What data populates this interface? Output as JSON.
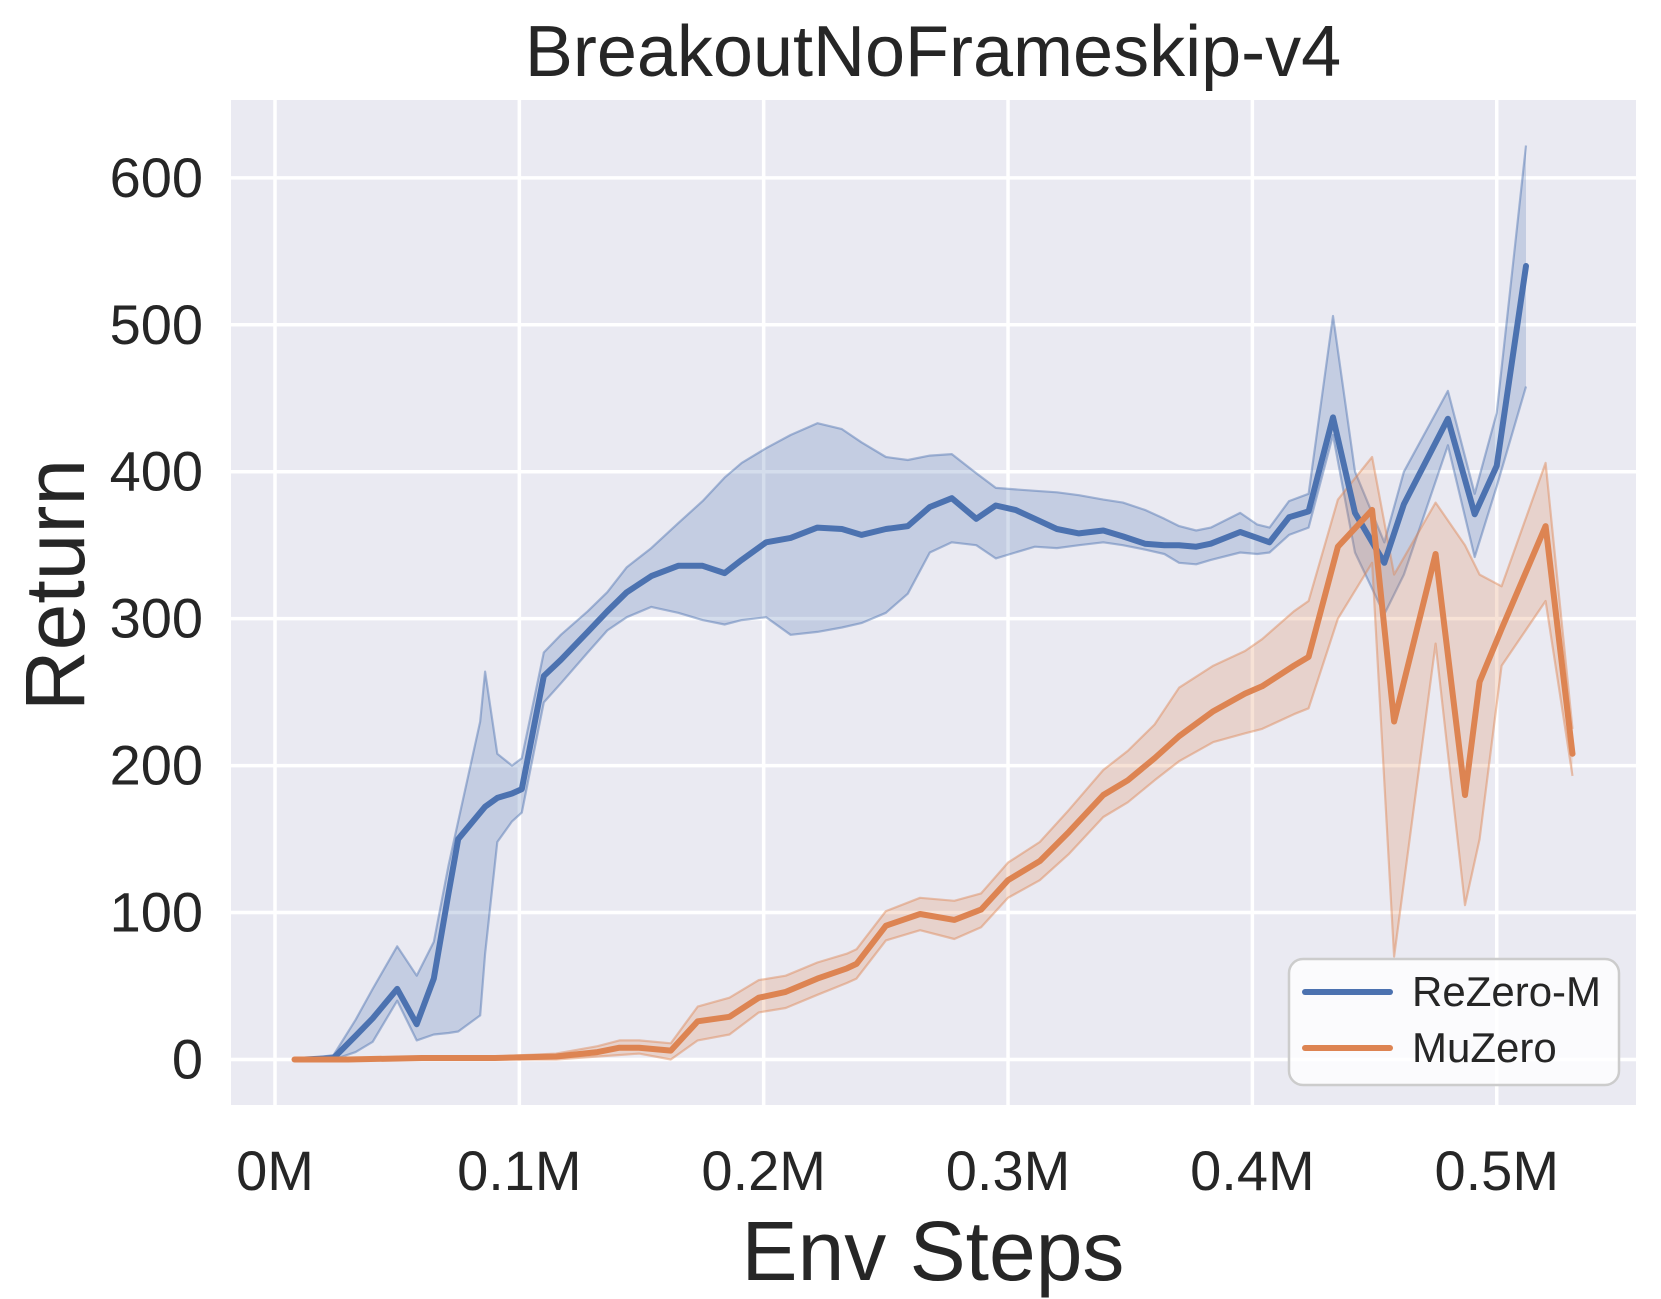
{
  "chart_data": {
    "type": "line",
    "title": "BreakoutNoFrameskip-v4",
    "xlabel": "Env Steps",
    "ylabel": "Return",
    "x_unit": "millions of env steps",
    "xlim": [
      -0.018,
      0.557
    ],
    "ylim": [
      -31,
      653
    ],
    "grid": true,
    "plot_background": "#EAEAF2",
    "figure_background": "#FFFFFF",
    "grid_color": "#FFFFFF",
    "text_color": "#262626",
    "x_ticks": [
      {
        "value": 0.0,
        "label": "0M"
      },
      {
        "value": 0.1,
        "label": "0.1M"
      },
      {
        "value": 0.2,
        "label": "0.2M"
      },
      {
        "value": 0.3,
        "label": "0.3M"
      },
      {
        "value": 0.4,
        "label": "0.4M"
      },
      {
        "value": 0.5,
        "label": "0.5M"
      }
    ],
    "y_ticks": [
      0,
      100,
      200,
      300,
      400,
      500,
      600
    ],
    "legend": {
      "position": "lower-right",
      "entries": [
        {
          "label": "ReZero-M",
          "color": "#4C72B0"
        },
        {
          "label": "MuZero",
          "color": "#DD8452"
        }
      ]
    },
    "point_format": "[env_steps_M, ci_low, mean, ci_high]",
    "series": [
      {
        "name": "ReZero-M",
        "color": "#4C72B0",
        "points": [
          [
            0.012,
            0,
            0,
            0
          ],
          [
            0.024,
            0,
            1,
            3
          ],
          [
            0.033,
            5,
            16,
            27
          ],
          [
            0.04,
            12,
            28,
            48
          ],
          [
            0.05,
            40,
            48,
            77
          ],
          [
            0.058,
            13,
            24,
            57
          ],
          [
            0.065,
            17,
            55,
            80
          ],
          [
            0.071,
            18,
            113,
            132
          ],
          [
            0.075,
            19,
            150,
            162
          ],
          [
            0.084,
            30,
            168,
            230
          ],
          [
            0.086,
            72,
            172,
            264
          ],
          [
            0.091,
            148,
            178,
            208
          ],
          [
            0.097,
            162,
            181,
            200
          ],
          [
            0.101,
            168,
            184,
            205
          ],
          [
            0.11,
            243,
            261,
            277
          ],
          [
            0.117,
            256,
            272,
            289
          ],
          [
            0.128,
            277,
            291,
            305
          ],
          [
            0.136,
            292,
            305,
            318
          ],
          [
            0.144,
            301,
            318,
            335
          ],
          [
            0.154,
            308,
            329,
            348
          ],
          [
            0.165,
            304,
            336,
            365
          ],
          [
            0.175,
            299,
            336,
            380
          ],
          [
            0.184,
            296,
            331,
            396
          ],
          [
            0.191,
            299,
            340,
            406
          ],
          [
            0.201,
            301,
            352,
            416
          ],
          [
            0.211,
            289,
            355,
            425
          ],
          [
            0.222,
            291,
            362,
            433
          ],
          [
            0.232,
            294,
            361,
            429
          ],
          [
            0.24,
            297,
            357,
            420
          ],
          [
            0.25,
            304,
            361,
            410
          ],
          [
            0.259,
            317,
            363,
            408
          ],
          [
            0.268,
            345,
            376,
            411
          ],
          [
            0.277,
            352,
            382,
            412
          ],
          [
            0.287,
            350,
            368,
            399
          ],
          [
            0.295,
            341,
            377,
            389
          ],
          [
            0.303,
            345,
            374,
            388
          ],
          [
            0.311,
            349,
            368,
            387
          ],
          [
            0.32,
            348,
            361,
            386
          ],
          [
            0.329,
            350,
            358,
            384
          ],
          [
            0.339,
            352,
            360,
            381
          ],
          [
            0.347,
            350,
            356,
            379
          ],
          [
            0.356,
            347,
            351,
            374
          ],
          [
            0.364,
            344,
            350,
            368
          ],
          [
            0.37,
            338,
            350,
            363
          ],
          [
            0.377,
            337,
            349,
            360
          ],
          [
            0.383,
            340,
            351,
            362
          ],
          [
            0.395,
            345,
            359,
            372
          ],
          [
            0.402,
            344,
            355,
            364
          ],
          [
            0.407,
            345,
            352,
            362
          ],
          [
            0.415,
            357,
            369,
            380
          ],
          [
            0.423,
            362,
            373,
            385
          ],
          [
            0.433,
            425,
            437,
            506
          ],
          [
            0.442,
            345,
            372,
            400
          ],
          [
            0.454,
            303,
            338,
            352
          ],
          [
            0.462,
            330,
            378,
            400
          ],
          [
            0.48,
            418,
            436,
            455
          ],
          [
            0.491,
            342,
            371,
            385
          ],
          [
            0.5,
            390,
            404,
            440
          ],
          [
            0.512,
            458,
            540,
            622
          ]
        ]
      },
      {
        "name": "MuZero",
        "color": "#DD8452",
        "points": [
          [
            0.008,
            0,
            0,
            0
          ],
          [
            0.03,
            0,
            0,
            1
          ],
          [
            0.06,
            0,
            1,
            2
          ],
          [
            0.09,
            0,
            1,
            2
          ],
          [
            0.115,
            0,
            2,
            4
          ],
          [
            0.132,
            2,
            5,
            9
          ],
          [
            0.141,
            3,
            8,
            13
          ],
          [
            0.149,
            4,
            8,
            13
          ],
          [
            0.162,
            0,
            6,
            11
          ],
          [
            0.173,
            13,
            26,
            36
          ],
          [
            0.186,
            17,
            29,
            42
          ],
          [
            0.198,
            32,
            42,
            54
          ],
          [
            0.209,
            35,
            46,
            57
          ],
          [
            0.222,
            44,
            55,
            66
          ],
          [
            0.234,
            52,
            62,
            72
          ],
          [
            0.238,
            55,
            65,
            75
          ],
          [
            0.25,
            81,
            91,
            101
          ],
          [
            0.264,
            88,
            99,
            110
          ],
          [
            0.278,
            82,
            95,
            108
          ],
          [
            0.289,
            90,
            102,
            113
          ],
          [
            0.3,
            110,
            122,
            134
          ],
          [
            0.313,
            122,
            135,
            148
          ],
          [
            0.325,
            140,
            155,
            170
          ],
          [
            0.339,
            165,
            180,
            197
          ],
          [
            0.349,
            175,
            190,
            210
          ],
          [
            0.36,
            190,
            205,
            228
          ],
          [
            0.37,
            203,
            220,
            253
          ],
          [
            0.384,
            216,
            237,
            268
          ],
          [
            0.397,
            222,
            249,
            278
          ],
          [
            0.404,
            225,
            254,
            286
          ],
          [
            0.417,
            235,
            268,
            305
          ],
          [
            0.423,
            239,
            274,
            312
          ],
          [
            0.435,
            300,
            349,
            381
          ],
          [
            0.449,
            338,
            374,
            410
          ],
          [
            0.458,
            70,
            230,
            330
          ],
          [
            0.475,
            283,
            344,
            379
          ],
          [
            0.487,
            105,
            180,
            350
          ],
          [
            0.493,
            150,
            257,
            330
          ],
          [
            0.502,
            268,
            293,
            322
          ],
          [
            0.52,
            312,
            363,
            406
          ],
          [
            0.531,
            193,
            208,
            225
          ]
        ]
      }
    ]
  }
}
